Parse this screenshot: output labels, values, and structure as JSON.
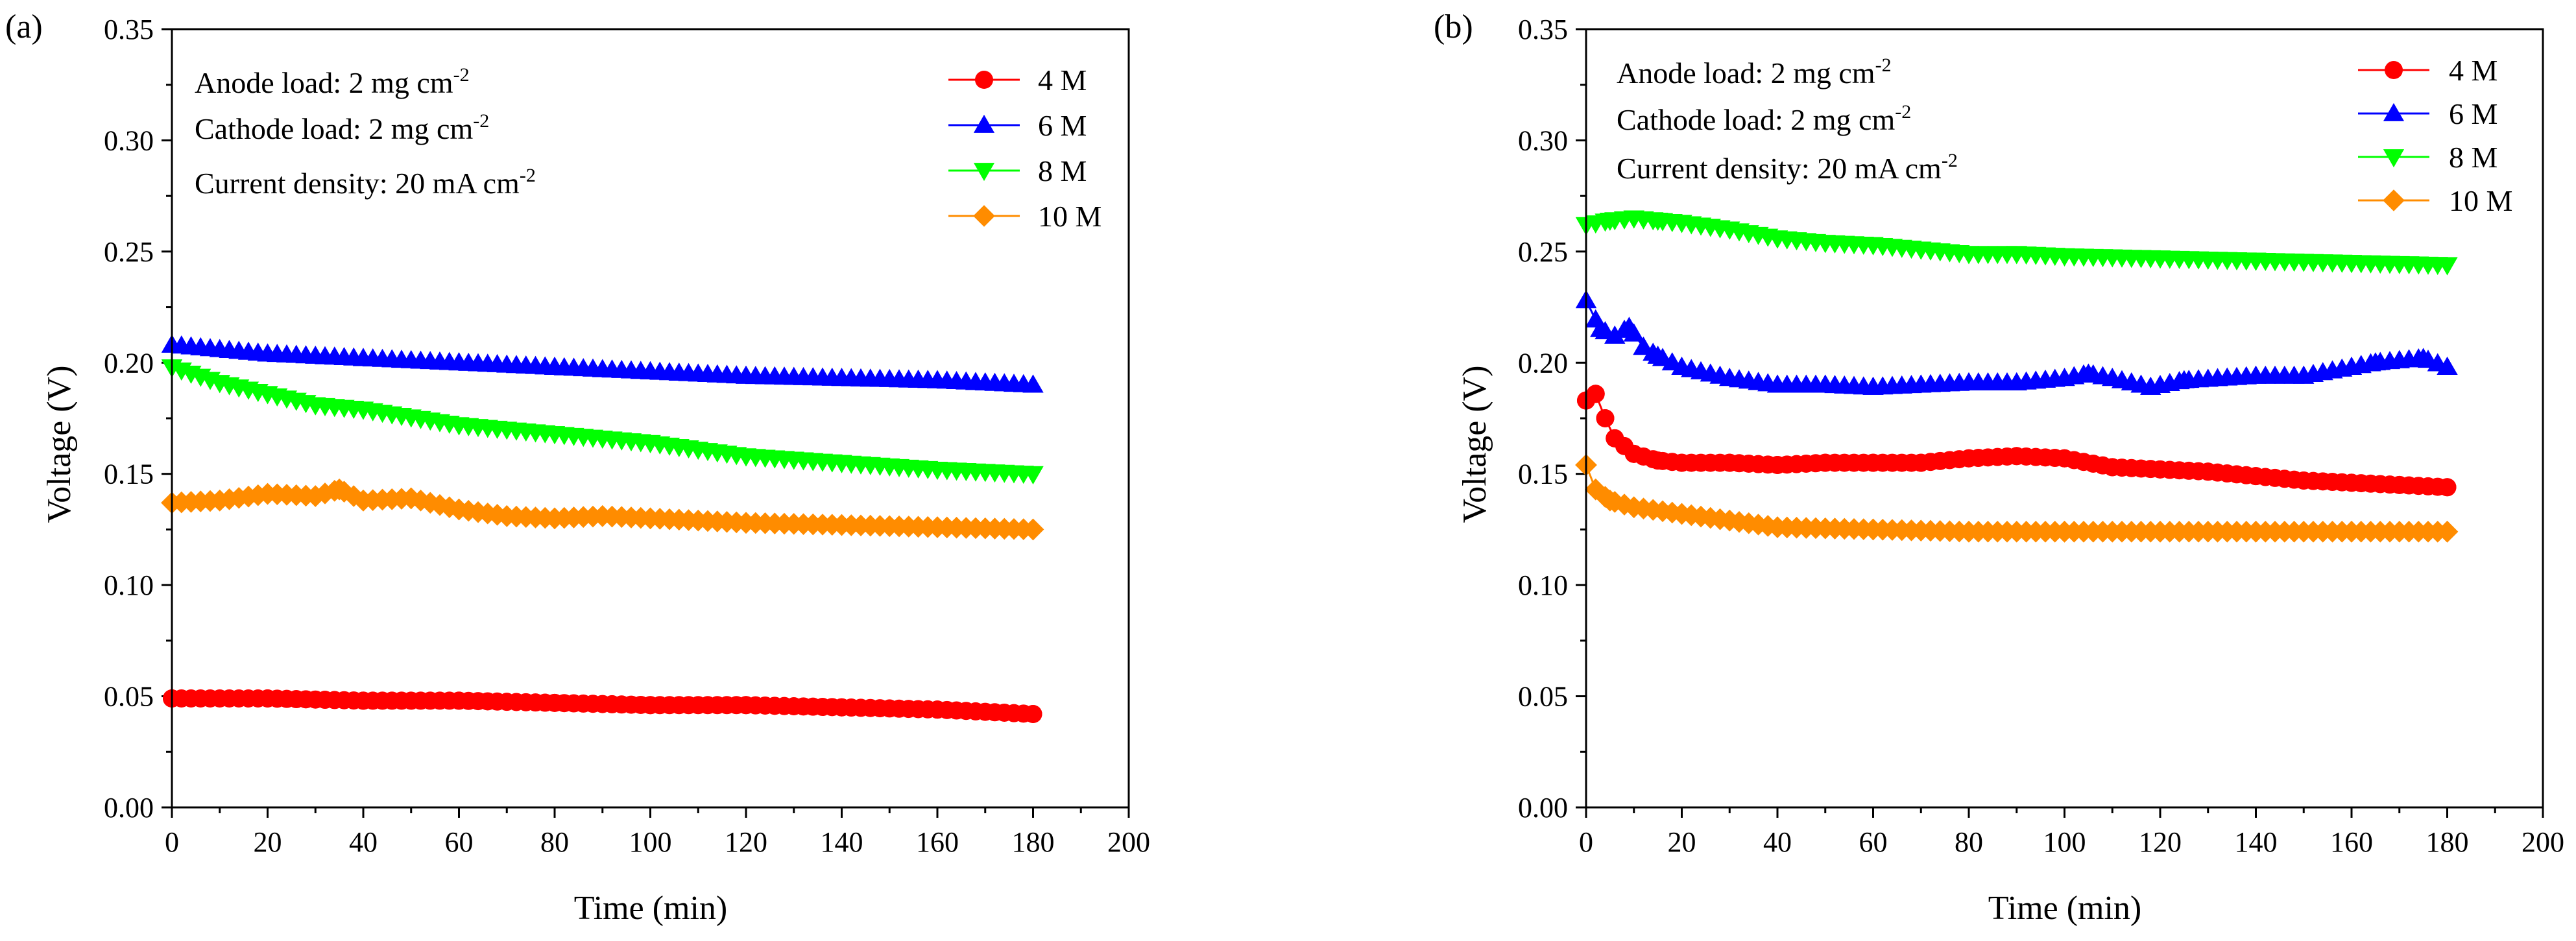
{
  "chart_data": [
    {
      "type": "line",
      "panel_label": "(a)",
      "xlabel": "Time (min)",
      "ylabel": "Voltage (V)",
      "xlim": [
        0,
        200
      ],
      "ylim": [
        0,
        0.35
      ],
      "xticks": [
        "0",
        "20",
        "40",
        "60",
        "80",
        "100",
        "120",
        "140",
        "160",
        "180",
        "200"
      ],
      "yticks": [
        "0.00",
        "0.05",
        "0.10",
        "0.15",
        "0.20",
        "0.25",
        "0.30",
        "0.35"
      ],
      "grid": false,
      "legend_position": "top-right",
      "annotation": {
        "anode": {
          "text": "Anode load: 2 mg cm",
          "sup": "-2"
        },
        "cathode": {
          "text": "Cathode load: 2 mg cm",
          "sup": "-2"
        },
        "current": {
          "text": "Current density: 20 mA cm",
          "sup": "-2"
        }
      },
      "series": [
        {
          "name": "4 M",
          "color": "#ff0000",
          "marker": "circle",
          "x": [
            0,
            20,
            40,
            60,
            80,
            100,
            120,
            140,
            160,
            180
          ],
          "y": [
            0.049,
            0.049,
            0.048,
            0.048,
            0.047,
            0.046,
            0.046,
            0.045,
            0.044,
            0.042
          ]
        },
        {
          "name": "6 M",
          "color": "#0000ff",
          "marker": "triangle-up",
          "x": [
            0,
            20,
            40,
            60,
            80,
            100,
            120,
            140,
            160,
            180
          ],
          "y": [
            0.208,
            0.204,
            0.202,
            0.2,
            0.198,
            0.196,
            0.194,
            0.193,
            0.192,
            0.19
          ]
        },
        {
          "name": "8 M",
          "color": "#00ff00",
          "marker": "triangle-down",
          "x": [
            0,
            10,
            20,
            30,
            40,
            60,
            80,
            100,
            120,
            140,
            160,
            180
          ],
          "y": [
            0.198,
            0.191,
            0.186,
            0.181,
            0.179,
            0.172,
            0.168,
            0.164,
            0.158,
            0.155,
            0.152,
            0.15
          ]
        },
        {
          "name": "10 M",
          "color": "#ff8c00",
          "marker": "diamond",
          "x": [
            0,
            10,
            20,
            30,
            35,
            40,
            50,
            60,
            70,
            80,
            90,
            100,
            120,
            140,
            160,
            180
          ],
          "y": [
            0.137,
            0.138,
            0.141,
            0.14,
            0.143,
            0.138,
            0.139,
            0.134,
            0.131,
            0.13,
            0.131,
            0.13,
            0.128,
            0.127,
            0.126,
            0.125
          ]
        }
      ]
    },
    {
      "type": "line",
      "panel_label": "(b)",
      "xlabel": "Time (min)",
      "ylabel": "Voltage (V)",
      "xlim": [
        0,
        200
      ],
      "ylim": [
        0,
        0.35
      ],
      "xticks": [
        "0",
        "20",
        "40",
        "60",
        "80",
        "100",
        "120",
        "140",
        "160",
        "180",
        "200"
      ],
      "yticks": [
        "0.00",
        "0.05",
        "0.10",
        "0.15",
        "0.20",
        "0.25",
        "0.30",
        "0.35"
      ],
      "grid": false,
      "legend_position": "top-right",
      "annotation": {
        "anode": {
          "text": "Anode load: 2 mg cm",
          "sup": "-2"
        },
        "cathode": {
          "text": "Cathode load: 2 mg cm",
          "sup": "-2"
        },
        "current": {
          "text": "Current density: 20 mA cm",
          "sup": "-2"
        }
      },
      "series": [
        {
          "name": "4 M",
          "color": "#ff0000",
          "marker": "circle",
          "x": [
            0,
            2,
            4,
            6,
            10,
            15,
            20,
            30,
            40,
            50,
            60,
            70,
            80,
            90,
            100,
            110,
            120,
            130,
            140,
            150,
            160,
            170,
            180
          ],
          "y": [
            0.183,
            0.186,
            0.175,
            0.166,
            0.159,
            0.156,
            0.155,
            0.155,
            0.154,
            0.155,
            0.155,
            0.155,
            0.157,
            0.158,
            0.157,
            0.153,
            0.152,
            0.151,
            0.149,
            0.147,
            0.146,
            0.145,
            0.144
          ]
        },
        {
          "name": "6 M",
          "color": "#0000ff",
          "marker": "triangle-up",
          "x": [
            0,
            3,
            6,
            9,
            12,
            15,
            20,
            30,
            40,
            50,
            60,
            70,
            80,
            90,
            100,
            105,
            110,
            118,
            125,
            140,
            150,
            160,
            165,
            170,
            175,
            180
          ],
          "y": [
            0.228,
            0.215,
            0.212,
            0.216,
            0.207,
            0.203,
            0.198,
            0.193,
            0.19,
            0.19,
            0.189,
            0.19,
            0.191,
            0.191,
            0.193,
            0.195,
            0.193,
            0.189,
            0.192,
            0.194,
            0.194,
            0.198,
            0.2,
            0.201,
            0.202,
            0.198
          ]
        },
        {
          "name": "8 M",
          "color": "#00ff00",
          "marker": "triangle-down",
          "x": [
            0,
            5,
            10,
            15,
            20,
            30,
            40,
            50,
            60,
            70,
            80,
            90,
            100,
            120,
            140,
            160,
            180
          ],
          "y": [
            0.262,
            0.264,
            0.265,
            0.264,
            0.263,
            0.26,
            0.256,
            0.254,
            0.253,
            0.251,
            0.249,
            0.249,
            0.248,
            0.247,
            0.246,
            0.245,
            0.244
          ]
        },
        {
          "name": "10 M",
          "color": "#ff8c00",
          "marker": "diamond",
          "x": [
            0,
            2,
            5,
            10,
            20,
            30,
            40,
            60,
            80,
            100,
            120,
            140,
            160,
            180
          ],
          "y": [
            0.154,
            0.143,
            0.138,
            0.135,
            0.132,
            0.129,
            0.126,
            0.125,
            0.124,
            0.124,
            0.124,
            0.124,
            0.124,
            0.124
          ]
        }
      ]
    }
  ]
}
